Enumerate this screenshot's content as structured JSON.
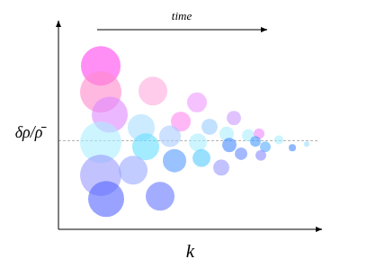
{
  "chart_data": {
    "type": "bubble",
    "x_label": "k",
    "y_label": "δρ/ρ̄",
    "annotation": "time",
    "xlim": [
      0,
      293
    ],
    "ylim": [
      -102,
      138
    ],
    "xticks": [],
    "yticks": [],
    "tick_labels": false,
    "grid": false,
    "baseline": 0,
    "x": [
      47,
      47,
      57,
      47,
      47,
      53,
      105,
      92,
      97,
      83,
      113,
      154,
      136,
      124,
      155,
      129,
      159,
      181,
      168,
      195,
      187,
      190,
      203,
      211,
      223,
      219,
      230,
      225,
      245,
      260,
      276
    ],
    "values": [
      86,
      56,
      30,
      -2,
      -40,
      -67,
      57,
      15,
      -7,
      -34,
      -64,
      44,
      22,
      5,
      -2,
      -23,
      -20,
      -31,
      16,
      26,
      8,
      -5,
      -15,
      6,
      8,
      -1,
      -7,
      -17,
      1,
      -8,
      -4
    ],
    "sizes": [
      22,
      23,
      20,
      23,
      23,
      20,
      16,
      15,
      15,
      16,
      16,
      11,
      11,
      12,
      10,
      13,
      10,
      9,
      9,
      8,
      8,
      8,
      7,
      7,
      6,
      6,
      6,
      6,
      5,
      4,
      3
    ],
    "colors": [
      "#ff44ee",
      "#ff88cc",
      "#dd88ff",
      "#aaeeff",
      "#9999ff",
      "#5566ff",
      "#ffaadd",
      "#aaddff",
      "#66ddff",
      "#99aaff",
      "#6677ff",
      "#ee99ff",
      "#ff88ee",
      "#aaccff",
      "#aaeeff",
      "#5599ff",
      "#55ccff",
      "#9999ff",
      "#99ccff",
      "#cc99ff",
      "#aaeeff",
      "#4488ff",
      "#6688ff",
      "#aaeeff",
      "#ee88ff",
      "#4499ff",
      "#55aaff",
      "#8888ff",
      "#aaeeff",
      "#4488ff",
      "#99ddff"
    ]
  }
}
